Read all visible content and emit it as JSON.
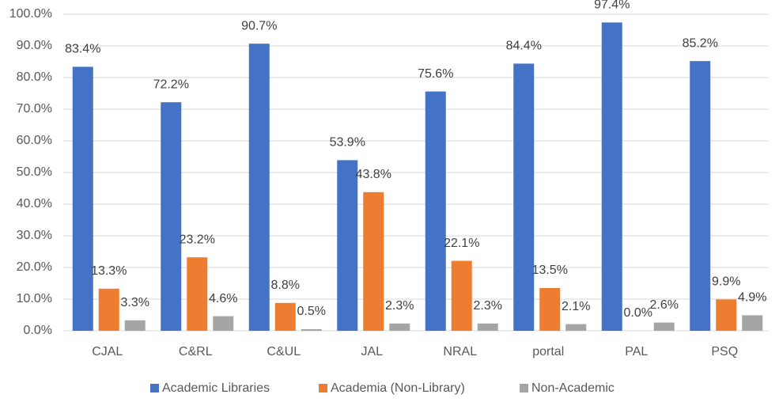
{
  "chart_data": {
    "type": "bar",
    "categories": [
      "CJAL",
      "C&RL",
      "C&UL",
      "JAL",
      "NRAL",
      "portal",
      "PAL",
      "PSQ"
    ],
    "series": [
      {
        "name": "Academic Libraries",
        "color": "#4472c4",
        "values": [
          83.4,
          72.2,
          90.7,
          53.9,
          75.6,
          84.4,
          97.4,
          85.2
        ],
        "value_labels": [
          "83.4%",
          "72.2%",
          "90.7%",
          "53.9%",
          "75.6%",
          "84.4%",
          "97.4%",
          "85.2%"
        ]
      },
      {
        "name": "Academia (Non-Library)",
        "color": "#ed7d31",
        "values": [
          13.3,
          23.2,
          8.8,
          43.8,
          22.1,
          13.5,
          0.0,
          9.9
        ],
        "value_labels": [
          "13.3%",
          "23.2%",
          "8.8%",
          "43.8%",
          "22.1%",
          "13.5%",
          "0.0%",
          "9.9%"
        ]
      },
      {
        "name": "Non-Academic",
        "color": "#a5a5a5",
        "values": [
          3.3,
          4.6,
          0.5,
          2.3,
          2.3,
          2.1,
          2.6,
          4.9
        ],
        "value_labels": [
          "3.3%",
          "4.6%",
          "0.5%",
          "2.3%",
          "2.3%",
          "2.1%",
          "2.6%",
          "4.9%"
        ]
      }
    ],
    "ylim": [
      0,
      100
    ],
    "yticks": [
      {
        "value": 0,
        "label": "0.0%"
      },
      {
        "value": 10,
        "label": "10.0%"
      },
      {
        "value": 20,
        "label": "20.0%"
      },
      {
        "value": 30,
        "label": "30.0%"
      },
      {
        "value": 40,
        "label": "40.0%"
      },
      {
        "value": 50,
        "label": "50.0%"
      },
      {
        "value": 60,
        "label": "60.0%"
      },
      {
        "value": 70,
        "label": "70.0%"
      },
      {
        "value": 80,
        "label": "80.0%"
      },
      {
        "value": 90,
        "label": "90.0%"
      },
      {
        "value": 100,
        "label": "100.0%"
      }
    ],
    "grid": true,
    "legend": "bottom"
  }
}
